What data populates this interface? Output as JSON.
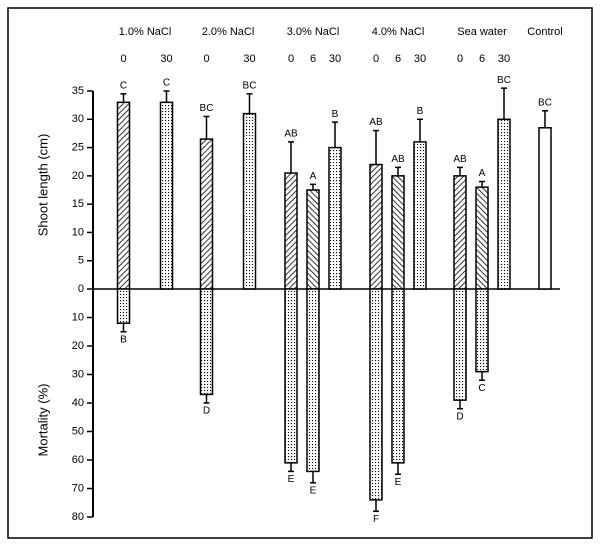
{
  "chart_data": {
    "type": "bar",
    "ylabel": "Shoot length (cm)",
    "y2label": "Mortality (%)",
    "groups": [
      {
        "name": "1.0% NaCl",
        "categories": [
          "0",
          "30"
        ]
      },
      {
        "name": "2.0% NaCl",
        "categories": [
          "0",
          "30"
        ]
      },
      {
        "name": "3.0% NaCl",
        "categories": [
          "0",
          "6",
          "30"
        ]
      },
      {
        "name": "4.0% NaCl",
        "categories": [
          "0",
          "6",
          "30"
        ]
      },
      {
        "name": "Sea water",
        "categories": [
          "0",
          "6",
          "30"
        ]
      },
      {
        "name": "Control",
        "categories": [
          null
        ]
      }
    ],
    "series": [
      {
        "axis": "y",
        "values": [
          33,
          33,
          26.5,
          31,
          20.5,
          17.5,
          25,
          22,
          20,
          26,
          20,
          18,
          30,
          28.5
        ],
        "errors": [
          1.5,
          2,
          4,
          3.5,
          5.5,
          1,
          4.5,
          6,
          1.5,
          4,
          1.5,
          1,
          5.5,
          3
        ],
        "letters": [
          "C",
          "C",
          "BC",
          "BC",
          "AB",
          "A",
          "B",
          "AB",
          "AB",
          "B",
          "AB",
          "A",
          "BC",
          "BC"
        ],
        "patterns": [
          "hatch",
          "dots",
          "hatch",
          "dots",
          "hatch",
          "hatch2",
          "dots",
          "hatch",
          "hatch2",
          "dots",
          "hatch",
          "hatch2",
          "dots",
          "none"
        ]
      },
      {
        "axis": "y2",
        "values": [
          12,
          null,
          37,
          null,
          61,
          64,
          null,
          74,
          61,
          null,
          39,
          29,
          null,
          null
        ],
        "errors": [
          3,
          null,
          3,
          null,
          3,
          4,
          null,
          4,
          4,
          null,
          3,
          3,
          null,
          null
        ],
        "letters": [
          "B",
          null,
          "D",
          null,
          "E",
          "E",
          null,
          "F",
          "E",
          null,
          "D",
          "C",
          null,
          null
        ],
        "patterns": [
          "dots",
          null,
          "dots",
          null,
          "dots",
          "dots",
          null,
          "dots",
          "dots",
          null,
          "dots",
          "dots",
          null,
          null
        ]
      }
    ],
    "ylim": [
      0,
      35
    ],
    "yticks": [
      0,
      5,
      10,
      15,
      20,
      25,
      30,
      35
    ],
    "y2lim": [
      0,
      80
    ],
    "y2ticks": [
      10,
      20,
      30,
      40,
      50,
      60,
      70,
      80
    ]
  }
}
